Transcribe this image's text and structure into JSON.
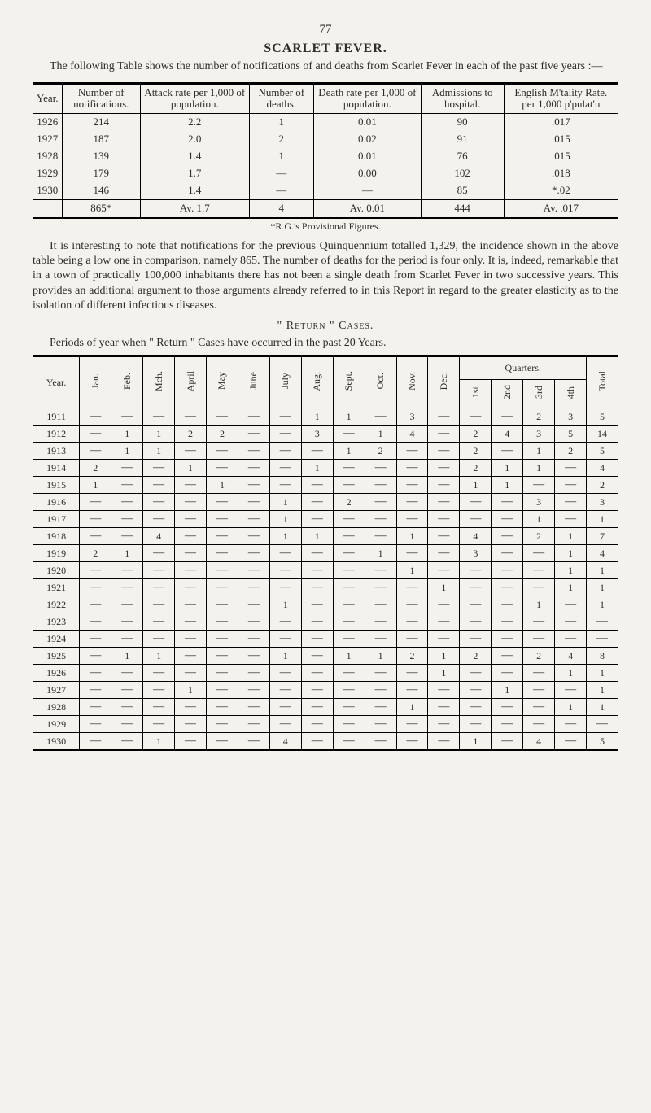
{
  "page_number": "77",
  "title": "SCARLET FEVER.",
  "intro": "The following Table shows the number of notifications of and deaths from Scarlet Fever in each of the past five years :—",
  "table1": {
    "headers": [
      "Year.",
      "Number of notifica­tions.",
      "Attack rate per 1,000 of population.",
      "Number of deaths.",
      "Death rate per 1,000 of population.",
      "Admissions to hospital.",
      "English M'tality Rate. per 1,000 p'pulat'n"
    ],
    "rows": [
      [
        "1926",
        "214",
        "2.2",
        "1",
        "0.01",
        "90",
        ".017"
      ],
      [
        "1927",
        "187",
        "2.0",
        "2",
        "0.02",
        "91",
        ".015"
      ],
      [
        "1928",
        "139",
        "1.4",
        "1",
        "0.01",
        "76",
        ".015"
      ],
      [
        "1929",
        "179",
        "1.7",
        "—",
        "0.00",
        "102",
        ".018"
      ],
      [
        "1930",
        "146",
        "1.4",
        "—",
        "—",
        "85",
        "*.02"
      ]
    ],
    "sum": [
      "",
      "865*",
      "Av. 1.7",
      "4",
      "Av. 0.01",
      "444",
      "Av. .017"
    ]
  },
  "footnote": "*R.G.'s Provisional Figures.",
  "para": "It is interesting to note that notifications for the previous Quinquennium totalled 1,329, the incidence shown in the above table being a low one in comparison, namely 865. The number of deaths for the period is four only. It is, indeed, remarkable that in a town of practically 100,000 inhabitants there has not been a single death from Scarlet Fever in two successive years. This provides an additional argument to those arguments already referred to in this Report in regard to the greater elasticity as to the isolation of different infectious diseases.",
  "subhead": "\" Return \" Cases.",
  "periods_line": "Periods of year when \" Return \" Cases have occurred in the past 20 Years.",
  "table2": {
    "quarters_label": "Quarters.",
    "month_headers": [
      "Year.",
      "Jan.",
      "Feb.",
      "Mch.",
      "April",
      "May",
      "June",
      "July",
      "Aug.",
      "Sept.",
      "Oct.",
      "Nov.",
      "Dec."
    ],
    "quarter_headers": [
      "1st",
      "2nd",
      "3rd",
      "4th"
    ],
    "total_header": "Total",
    "rows": [
      {
        "y": "1911",
        "m": [
          "—",
          "—",
          "—",
          "—",
          "—",
          "—",
          "—",
          "1",
          "1",
          "—",
          "3",
          "—"
        ],
        "q": [
          "—",
          "—",
          "2",
          "3"
        ],
        "t": "5"
      },
      {
        "y": "1912",
        "m": [
          "—",
          "1",
          "1",
          "2",
          "2",
          "—",
          "—",
          "3",
          "—",
          "1",
          "4",
          "—"
        ],
        "q": [
          "2",
          "4",
          "3",
          "5"
        ],
        "t": "14"
      },
      {
        "y": "1913",
        "m": [
          "—",
          "1",
          "1",
          "—",
          "—",
          "—",
          "—",
          "—",
          "1",
          "2",
          "—",
          "—"
        ],
        "q": [
          "2",
          "—",
          "1",
          "2"
        ],
        "t": "5"
      },
      {
        "y": "1914",
        "m": [
          "2",
          "—",
          "—",
          "1",
          "—",
          "—",
          "—",
          "1",
          "—",
          "—",
          "—",
          "—"
        ],
        "q": [
          "2",
          "1",
          "1",
          "—"
        ],
        "t": "4"
      },
      {
        "y": "1915",
        "m": [
          "1",
          "—",
          "—",
          "—",
          "1",
          "—",
          "—",
          "—",
          "—",
          "—",
          "—",
          "—"
        ],
        "q": [
          "1",
          "1",
          "—",
          "—"
        ],
        "t": "2"
      },
      {
        "y": "1916",
        "m": [
          "—",
          "—",
          "—",
          "—",
          "—",
          "—",
          "1",
          "—",
          "2",
          "—",
          "—",
          "—"
        ],
        "q": [
          "—",
          "—",
          "3",
          "—"
        ],
        "t": "3"
      },
      {
        "y": "1917",
        "m": [
          "—",
          "—",
          "—",
          "—",
          "—",
          "—",
          "1",
          "—",
          "—",
          "—",
          "—",
          "—"
        ],
        "q": [
          "—",
          "—",
          "1",
          "—"
        ],
        "t": "1"
      },
      {
        "y": "1918",
        "m": [
          "—",
          "—",
          "4",
          "—",
          "—",
          "—",
          "1",
          "1",
          "—",
          "—",
          "1",
          "—"
        ],
        "q": [
          "4",
          "—",
          "2",
          "1"
        ],
        "t": "7"
      },
      {
        "y": "1919",
        "m": [
          "2",
          "1",
          "—",
          "—",
          "—",
          "—",
          "—",
          "—",
          "—",
          "1",
          "—",
          "—"
        ],
        "q": [
          "3",
          "—",
          "—",
          "1"
        ],
        "t": "4"
      },
      {
        "y": "1920",
        "m": [
          "—",
          "—",
          "—",
          "—",
          "—",
          "—",
          "—",
          "—",
          "—",
          "—",
          "1",
          "—"
        ],
        "q": [
          "—",
          "—",
          "—",
          "1"
        ],
        "t": "1"
      },
      {
        "y": "1921",
        "m": [
          "—",
          "—",
          "—",
          "—",
          "—",
          "—",
          "—",
          "—",
          "—",
          "—",
          "—",
          "1"
        ],
        "q": [
          "—",
          "—",
          "—",
          "1"
        ],
        "t": "1"
      },
      {
        "y": "1922",
        "m": [
          "—",
          "—",
          "—",
          "—",
          "—",
          "—",
          "1",
          "—",
          "—",
          "—",
          "—",
          "—"
        ],
        "q": [
          "—",
          "—",
          "1",
          "—"
        ],
        "t": "1"
      },
      {
        "y": "1923",
        "m": [
          "—",
          "—",
          "—",
          "—",
          "—",
          "—",
          "—",
          "—",
          "—",
          "—",
          "—",
          "—"
        ],
        "q": [
          "—",
          "—",
          "—",
          "—"
        ],
        "t": "—"
      },
      {
        "y": "1924",
        "m": [
          "—",
          "—",
          "—",
          "—",
          "—",
          "—",
          "—",
          "—",
          "—",
          "—",
          "—",
          "—"
        ],
        "q": [
          "—",
          "—",
          "—",
          "—"
        ],
        "t": "—"
      },
      {
        "y": "1925",
        "m": [
          "—",
          "1",
          "1",
          "—",
          "—",
          "—",
          "1",
          "—",
          "1",
          "1",
          "2",
          "1"
        ],
        "q": [
          "2",
          "—",
          "2",
          "4"
        ],
        "t": "8"
      },
      {
        "y": "1926",
        "m": [
          "—",
          "—",
          "—",
          "—",
          "—",
          "—",
          "—",
          "—",
          "—",
          "—",
          "—",
          "1"
        ],
        "q": [
          "—",
          "—",
          "—",
          "1"
        ],
        "t": "1"
      },
      {
        "y": "1927",
        "m": [
          "—",
          "—",
          "—",
          "1",
          "—",
          "—",
          "—",
          "—",
          "—",
          "—",
          "—",
          "—"
        ],
        "q": [
          "—",
          "1",
          "—",
          "—"
        ],
        "t": "1"
      },
      {
        "y": "1928",
        "m": [
          "—",
          "—",
          "—",
          "—",
          "—",
          "—",
          "—",
          "—",
          "—",
          "—",
          "1",
          "—"
        ],
        "q": [
          "—",
          "—",
          "—",
          "1"
        ],
        "t": "1"
      },
      {
        "y": "1929",
        "m": [
          "—",
          "—",
          "—",
          "—",
          "—",
          "—",
          "—",
          "—",
          "—",
          "—",
          "—",
          "—"
        ],
        "q": [
          "—",
          "—",
          "—",
          "—"
        ],
        "t": "—"
      },
      {
        "y": "1930",
        "m": [
          "—",
          "—",
          "1",
          "—",
          "—",
          "—",
          "4",
          "—",
          "—",
          "—",
          "—",
          "—"
        ],
        "q": [
          "1",
          "—",
          "4",
          "—"
        ],
        "t": "5"
      }
    ]
  }
}
